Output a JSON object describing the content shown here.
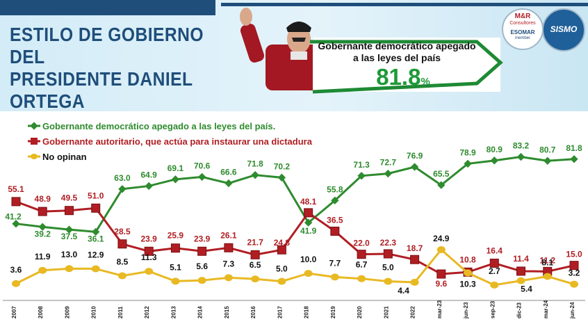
{
  "header": {
    "title_line1": "ESTILO DE GOBIERNO DEL",
    "title_line2": "PRESIDENTE DANIEL ORTEGA",
    "callout_text": "Gobernante democrático apegado a las leyes del país",
    "callout_value": "81.8",
    "callout_unit": "%",
    "logo1_line1": "M&R",
    "logo1_line2": "Consultores",
    "logo1_line3": "ESOMAR",
    "logo1_line4": "member",
    "logo2_text": "SISMO"
  },
  "colors": {
    "green": "#2e8b2e",
    "red": "#b01e23",
    "yellow": "#e8b923",
    "title_blue": "#1f4e7a"
  },
  "chart_data": {
    "type": "line",
    "categories": [
      "2007",
      "2008",
      "2009",
      "2010",
      "2011",
      "2012",
      "2013",
      "2014",
      "2015",
      "2016",
      "2017",
      "2018",
      "2019",
      "2020",
      "2021",
      "2022",
      "mar-23",
      "jun-23",
      "sep-23",
      "dic-23",
      "mar-24",
      "jun-24"
    ],
    "series": [
      {
        "name": "Gobernante  democrático apegado a las leyes del país.",
        "color": "#2e8b2e",
        "marker": "diamond",
        "values": [
          41.2,
          39.2,
          37.5,
          36.1,
          63.0,
          64.9,
          69.1,
          70.6,
          66.6,
          71.8,
          70.2,
          41.9,
          55.8,
          71.3,
          72.7,
          76.9,
          65.5,
          78.9,
          80.9,
          83.2,
          80.7,
          81.8
        ],
        "labels": [
          "41.2",
          "39.2",
          "37.5",
          "36.1",
          "63.0",
          "64.9",
          "69.1",
          "70.6",
          "66.6",
          "71.8",
          "70.2",
          "41.9",
          "55.8",
          "71.3",
          "72.7",
          "76.9",
          "65.5",
          "78.9",
          "80.9",
          "83.2",
          "80.7",
          "81.8"
        ]
      },
      {
        "name": "Gobernante autoritario, que actúa para instaurar una dictadura",
        "color": "#b01e23",
        "marker": "square",
        "values": [
          55.1,
          48.9,
          49.5,
          51.0,
          28.5,
          23.9,
          25.9,
          23.9,
          26.1,
          21.7,
          24.8,
          48.1,
          36.5,
          22.0,
          22.3,
          18.7,
          9.6,
          10.8,
          16.4,
          11.4,
          11.2,
          15.0
        ],
        "labels": [
          "55.1",
          "48.9",
          "49.5",
          "51.0",
          "28.5",
          "23.9",
          "25.9",
          "23.9",
          "26.1",
          "21.7",
          "24.8",
          "48.1",
          "36.5",
          "22.0",
          "22.3",
          "18.7",
          "9.6",
          "10.8",
          "16.4",
          "11.4",
          "11.2",
          "15.0"
        ]
      },
      {
        "name": "No opinan",
        "color": "#e8b923",
        "marker": "circle",
        "values": [
          3.6,
          11.9,
          13.0,
          12.9,
          8.5,
          11.3,
          5.1,
          5.6,
          7.3,
          6.5,
          5.0,
          10.0,
          7.7,
          6.7,
          5.0,
          4.4,
          24.9,
          10.3,
          2.7,
          5.4,
          8.1,
          3.2
        ],
        "labels": [
          "3.6",
          "11.9",
          "13.0",
          "12.9",
          "8.5",
          "11.3",
          "5.1",
          "5.6",
          "7.3",
          "6.5",
          "5.0",
          "10.0",
          "7.7",
          "6.7",
          "5.0",
          "4.4",
          "24.9",
          "10.3",
          "2.7",
          "5.4",
          "8.1",
          "3.2"
        ]
      }
    ],
    "ylim": [
      0,
      90
    ],
    "grid": false,
    "legend": "top-left"
  }
}
